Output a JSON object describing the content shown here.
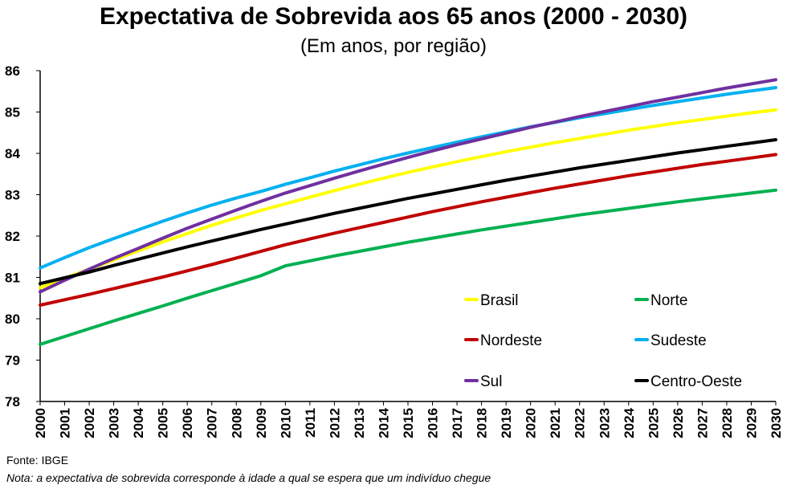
{
  "chart_data": {
    "type": "line",
    "title": "Expectativa de Sobrevida aos 65 anos (2000 - 2030)",
    "subtitle": "(Em anos, por região)",
    "xlabel": "",
    "ylabel": "",
    "ylim": [
      78,
      86
    ],
    "yticks": [
      78,
      79,
      80,
      81,
      82,
      83,
      84,
      85,
      86
    ],
    "grid": false,
    "legend_position": "bottom-right",
    "x": [
      2000,
      2001,
      2002,
      2003,
      2004,
      2005,
      2006,
      2007,
      2008,
      2009,
      2010,
      2011,
      2012,
      2013,
      2014,
      2015,
      2016,
      2017,
      2018,
      2019,
      2020,
      2021,
      2022,
      2023,
      2024,
      2025,
      2026,
      2027,
      2028,
      2029,
      2030
    ],
    "series": [
      {
        "name": "Brasil",
        "color": "#FFFF00",
        "values": [
          80.75,
          80.98,
          81.2,
          81.42,
          81.64,
          81.86,
          82.06,
          82.26,
          82.44,
          82.62,
          82.78,
          82.94,
          83.1,
          83.25,
          83.4,
          83.54,
          83.67,
          83.8,
          83.92,
          84.04,
          84.15,
          84.26,
          84.36,
          84.46,
          84.56,
          84.65,
          84.74,
          84.82,
          84.9,
          84.98,
          85.05
        ]
      },
      {
        "name": "Norte",
        "color": "#00B050",
        "values": [
          79.38,
          79.57,
          79.76,
          79.95,
          80.13,
          80.31,
          80.5,
          80.68,
          80.86,
          81.04,
          81.28,
          81.4,
          81.52,
          81.63,
          81.74,
          81.85,
          81.95,
          82.05,
          82.15,
          82.24,
          82.33,
          82.42,
          82.51,
          82.59,
          82.67,
          82.75,
          82.83,
          82.9,
          82.97,
          83.04,
          83.11
        ]
      },
      {
        "name": "Nordeste",
        "color": "#C00000",
        "values": [
          80.33,
          80.46,
          80.59,
          80.73,
          80.87,
          81.01,
          81.16,
          81.31,
          81.47,
          81.63,
          81.79,
          81.93,
          82.07,
          82.2,
          82.33,
          82.46,
          82.59,
          82.71,
          82.83,
          82.94,
          83.05,
          83.16,
          83.26,
          83.36,
          83.46,
          83.55,
          83.64,
          83.73,
          83.81,
          83.89,
          83.97
        ]
      },
      {
        "name": "Sudeste",
        "color": "#00B0F0",
        "values": [
          81.23,
          81.48,
          81.72,
          81.94,
          82.15,
          82.36,
          82.56,
          82.75,
          82.92,
          83.08,
          83.25,
          83.41,
          83.57,
          83.72,
          83.87,
          84.01,
          84.14,
          84.27,
          84.4,
          84.52,
          84.64,
          84.75,
          84.86,
          84.96,
          85.06,
          85.16,
          85.25,
          85.34,
          85.43,
          85.51,
          85.59
        ]
      },
      {
        "name": "Sul",
        "color": "#7030A0",
        "values": [
          80.65,
          80.93,
          81.2,
          81.46,
          81.7,
          81.95,
          82.19,
          82.41,
          82.63,
          82.84,
          83.04,
          83.22,
          83.4,
          83.57,
          83.74,
          83.9,
          84.06,
          84.21,
          84.35,
          84.49,
          84.63,
          84.76,
          84.89,
          85.01,
          85.13,
          85.25,
          85.36,
          85.47,
          85.58,
          85.68,
          85.78
        ]
      },
      {
        "name": "Centro-Oeste",
        "color": "#000000",
        "values": [
          80.85,
          80.99,
          81.13,
          81.29,
          81.44,
          81.59,
          81.74,
          81.88,
          82.02,
          82.16,
          82.29,
          82.42,
          82.55,
          82.67,
          82.79,
          82.91,
          83.02,
          83.13,
          83.24,
          83.35,
          83.45,
          83.55,
          83.65,
          83.74,
          83.83,
          83.92,
          84.01,
          84.09,
          84.17,
          84.25,
          84.33
        ]
      }
    ]
  },
  "legend_order": [
    "Brasil",
    "Norte",
    "Nordeste",
    "Sudeste",
    "Sul",
    "Centro-Oeste"
  ],
  "source": "Fonte: IBGE",
  "footnote": "Nota: a expectativa de sobrevida corresponde à idade a qual se espera que um indivíduo chegue"
}
